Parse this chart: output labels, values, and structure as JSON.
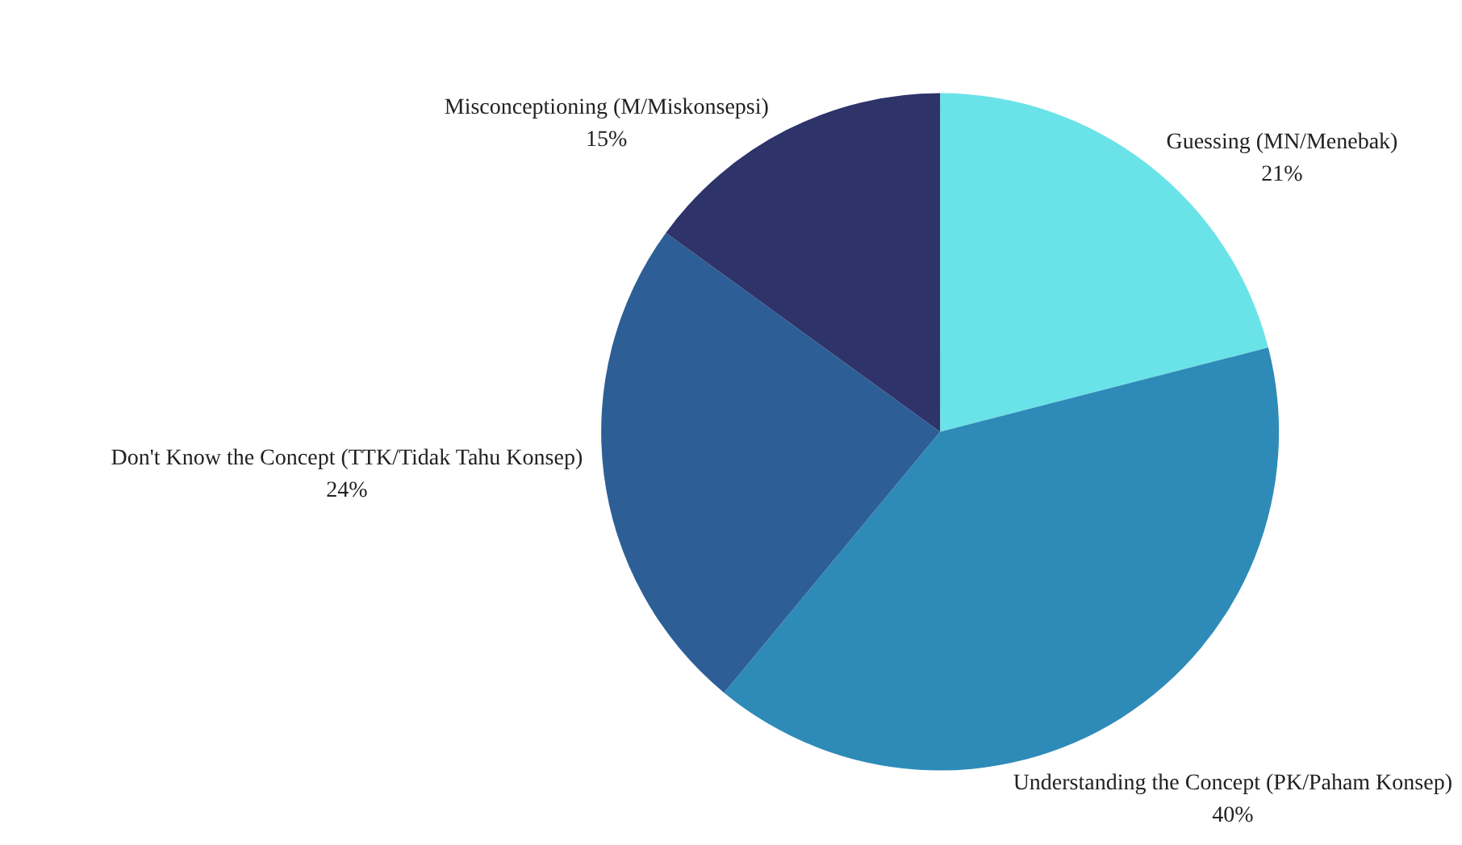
{
  "chart_data": {
    "type": "pie",
    "categories": [
      "Guessing (MN/Menebak)",
      "Understanding the Concept (PK/Paham Konsep)",
      "Don't Know the Concept (TTK/Tidak Tahu Konsep)",
      "Misconceptioning (M/Miskonsepsi)"
    ],
    "values": [
      21,
      40,
      24,
      15
    ],
    "value_labels": [
      "21%",
      "40%",
      "24%",
      "15%"
    ],
    "colors": [
      "#6ae3e8",
      "#2e8bb8",
      "#2d5f96",
      "#2e336a"
    ],
    "legend": false
  }
}
